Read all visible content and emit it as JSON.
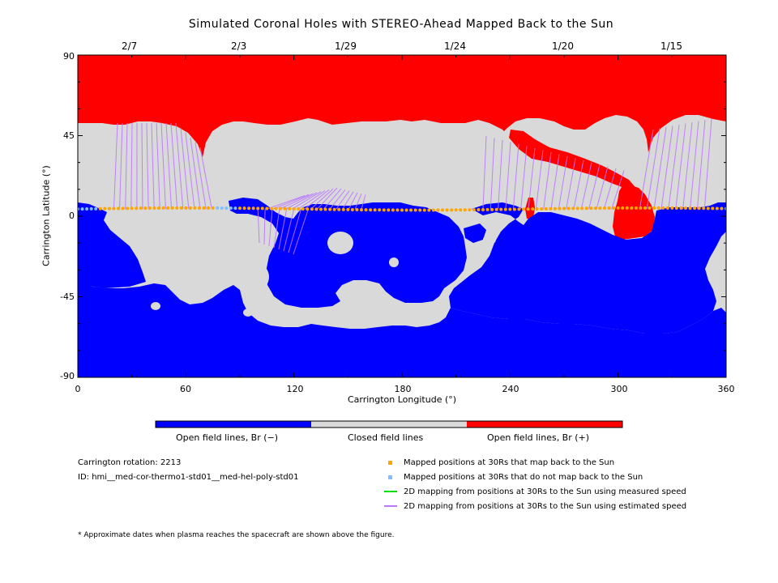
{
  "title": "Simulated Coronal Holes with STEREO-Ahead Mapped Back to the Sun",
  "top_dates": [
    "2/7",
    "2/3",
    "1/29",
    "1/24",
    "1/20",
    "1/15"
  ],
  "x_axis": {
    "label": "Carrington Longitude (°)",
    "ticks": [
      "0",
      "60",
      "120",
      "180",
      "240",
      "300",
      "360"
    ],
    "range": [
      0,
      360
    ]
  },
  "y_axis": {
    "label": "Carrington Latitude (°)",
    "ticks": [
      "90",
      "45",
      "0",
      "-45",
      "-90"
    ],
    "range": [
      -90,
      90
    ]
  },
  "colorbar": {
    "labels": [
      "Open field lines, Br (−)",
      "Closed field lines",
      "Open field lines, Br (+)"
    ],
    "colors": [
      "#0000ff",
      "#d9d9d9",
      "#ff0000"
    ]
  },
  "info": {
    "rotation": "Carrington rotation: 2213",
    "id": "ID: hmi__med-cor-thermo1-std01__med-hel-poly-std01"
  },
  "legend": [
    {
      "label": "Mapped positions at 30Rs that map back to the Sun",
      "symbol": "square",
      "color": "#ffa500"
    },
    {
      "label": "Mapped positions at 30Rs that do not map back to the Sun",
      "symbol": "square",
      "color": "#7fbfff"
    },
    {
      "label": "2D mapping from positions at 30Rs to the Sun using measured speed",
      "symbol": "line",
      "color": "#00dd00"
    },
    {
      "label": "2D mapping from positions at 30Rs to the Sun using estimated speed",
      "symbol": "line",
      "color": "#bb77ff"
    }
  ],
  "footnote": "* Approximate dates when plasma reaches the spacecraft are shown above the figure.",
  "map_data": {
    "spacecraft_track_latitude": 4,
    "orange_longitude_ranges": [
      [
        12,
        75
      ],
      [
        90,
        358
      ]
    ],
    "blue_longitude_ranges": [
      [
        0,
        12
      ],
      [
        75,
        90
      ],
      [
        358,
        360
      ]
    ],
    "point_spacing_deg": 2.5
  }
}
